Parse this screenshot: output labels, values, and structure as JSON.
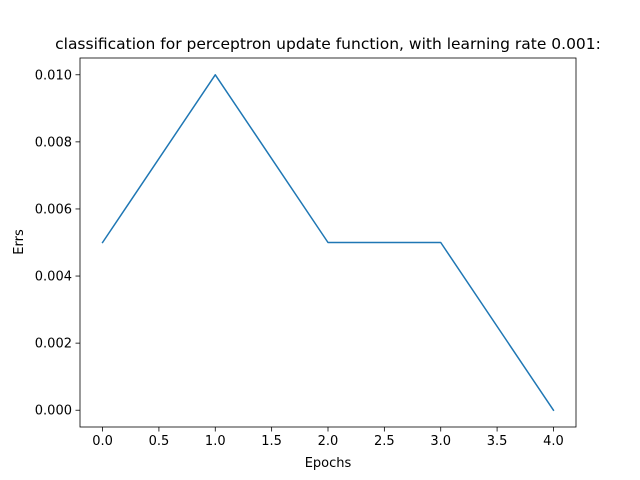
{
  "chart_data": {
    "type": "line",
    "title": "classification for perceptron update function, with learning rate 0.001:",
    "xlabel": "Epochs",
    "ylabel": "Errs",
    "x": [
      0,
      1,
      2,
      3,
      4
    ],
    "series": [
      {
        "values": [
          0.005,
          0.01,
          0.005,
          0.005,
          0.0
        ],
        "color": "#1f77b4"
      }
    ],
    "xlim": [
      -0.2,
      4.2
    ],
    "ylim": [
      -0.0005,
      0.0105
    ],
    "xticks": [
      0.0,
      0.5,
      1.0,
      1.5,
      2.0,
      2.5,
      3.0,
      3.5,
      4.0
    ],
    "xtick_labels": [
      "0.0",
      "0.5",
      "1.0",
      "1.5",
      "2.0",
      "2.5",
      "3.0",
      "3.5",
      "4.0"
    ],
    "yticks": [
      0.0,
      0.002,
      0.004,
      0.006,
      0.008,
      0.01
    ],
    "ytick_labels": [
      "0.000",
      "0.002",
      "0.004",
      "0.006",
      "0.008",
      "0.010"
    ],
    "grid": false,
    "legend": "none"
  }
}
